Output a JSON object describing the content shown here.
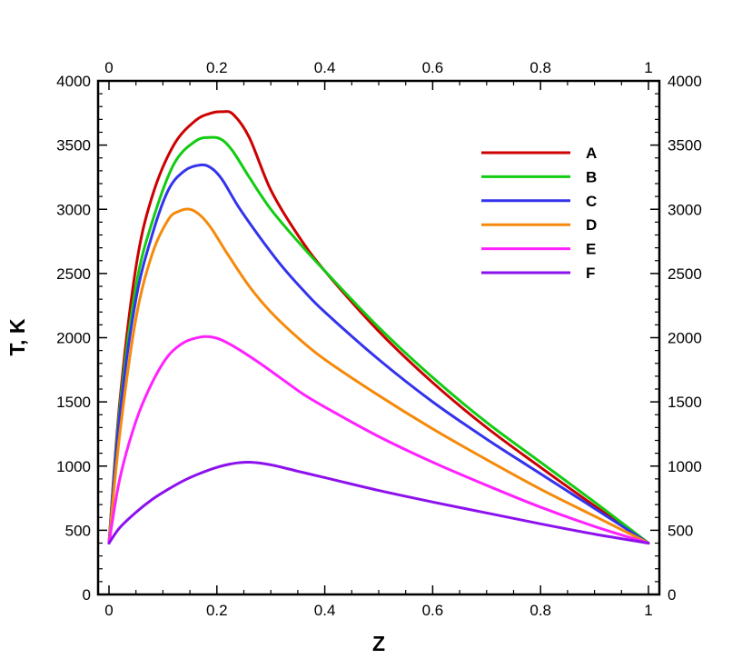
{
  "chart_data": {
    "type": "line",
    "title": "",
    "xlabel": "Z",
    "ylabel": "T, K",
    "xlim": [
      0,
      1
    ],
    "ylim": [
      0,
      4000
    ],
    "x_ticks": [
      0,
      0.2,
      0.4,
      0.6,
      0.8,
      1
    ],
    "x_tick_labels": [
      "0",
      "0.2",
      "0.4",
      "0.6",
      "0.8",
      "1"
    ],
    "y_ticks": [
      0,
      500,
      1000,
      1500,
      2000,
      2500,
      3000,
      3500,
      4000
    ],
    "y_tick_labels": [
      "0",
      "500",
      "1000",
      "1500",
      "2000",
      "2500",
      "3000",
      "3500",
      "4000"
    ],
    "grid": false,
    "legend_position": "top-right",
    "series": [
      {
        "name": "A",
        "color": "#cc0000",
        "x": [
          0,
          0.02,
          0.05,
          0.08,
          0.12,
          0.16,
          0.19,
          0.21,
          0.23,
          0.26,
          0.3,
          0.35,
          0.4,
          0.5,
          0.6,
          0.7,
          0.8,
          0.9,
          1.0
        ],
        "y": [
          400,
          1500,
          2550,
          3100,
          3500,
          3690,
          3750,
          3760,
          3740,
          3560,
          3150,
          2800,
          2520,
          2050,
          1650,
          1300,
          990,
          690,
          400
        ]
      },
      {
        "name": "B",
        "color": "#11cc11",
        "x": [
          0,
          0.02,
          0.05,
          0.08,
          0.12,
          0.16,
          0.19,
          0.21,
          0.23,
          0.26,
          0.3,
          0.35,
          0.4,
          0.5,
          0.6,
          0.7,
          0.8,
          0.9,
          1.0
        ],
        "y": [
          400,
          1450,
          2400,
          2900,
          3350,
          3530,
          3560,
          3540,
          3450,
          3250,
          3000,
          2750,
          2520,
          2080,
          1690,
          1340,
          1030,
          720,
          400
        ]
      },
      {
        "name": "C",
        "color": "#3333ee",
        "x": [
          0,
          0.02,
          0.05,
          0.08,
          0.11,
          0.14,
          0.17,
          0.19,
          0.21,
          0.24,
          0.28,
          0.32,
          0.36,
          0.4,
          0.5,
          0.6,
          0.7,
          0.8,
          0.9,
          1.0
        ],
        "y": [
          400,
          1400,
          2300,
          2800,
          3150,
          3300,
          3345,
          3320,
          3230,
          3020,
          2780,
          2560,
          2370,
          2200,
          1830,
          1500,
          1210,
          940,
          670,
          400
        ]
      },
      {
        "name": "D",
        "color": "#f58a0a",
        "x": [
          0,
          0.02,
          0.05,
          0.08,
          0.11,
          0.13,
          0.15,
          0.17,
          0.19,
          0.22,
          0.26,
          0.3,
          0.35,
          0.4,
          0.5,
          0.6,
          0.7,
          0.8,
          0.9,
          1.0
        ],
        "y": [
          400,
          1250,
          2150,
          2650,
          2920,
          2985,
          3000,
          2950,
          2850,
          2650,
          2400,
          2200,
          2000,
          1830,
          1550,
          1290,
          1050,
          820,
          610,
          400
        ]
      },
      {
        "name": "E",
        "color": "#ff22ff",
        "x": [
          0,
          0.02,
          0.05,
          0.08,
          0.11,
          0.14,
          0.17,
          0.19,
          0.21,
          0.24,
          0.28,
          0.32,
          0.36,
          0.4,
          0.5,
          0.6,
          0.7,
          0.8,
          0.9,
          1.0
        ],
        "y": [
          400,
          900,
          1350,
          1650,
          1860,
          1965,
          2005,
          2005,
          1980,
          1910,
          1800,
          1680,
          1560,
          1460,
          1230,
          1030,
          850,
          680,
          530,
          400
        ]
      },
      {
        "name": "F",
        "color": "#8c11ee",
        "x": [
          0,
          0.02,
          0.05,
          0.08,
          0.11,
          0.14,
          0.17,
          0.2,
          0.23,
          0.26,
          0.3,
          0.35,
          0.4,
          0.5,
          0.6,
          0.7,
          0.8,
          0.9,
          1.0
        ],
        "y": [
          400,
          520,
          640,
          740,
          820,
          890,
          945,
          990,
          1020,
          1030,
          1010,
          960,
          910,
          810,
          720,
          635,
          550,
          470,
          400
        ]
      }
    ]
  }
}
